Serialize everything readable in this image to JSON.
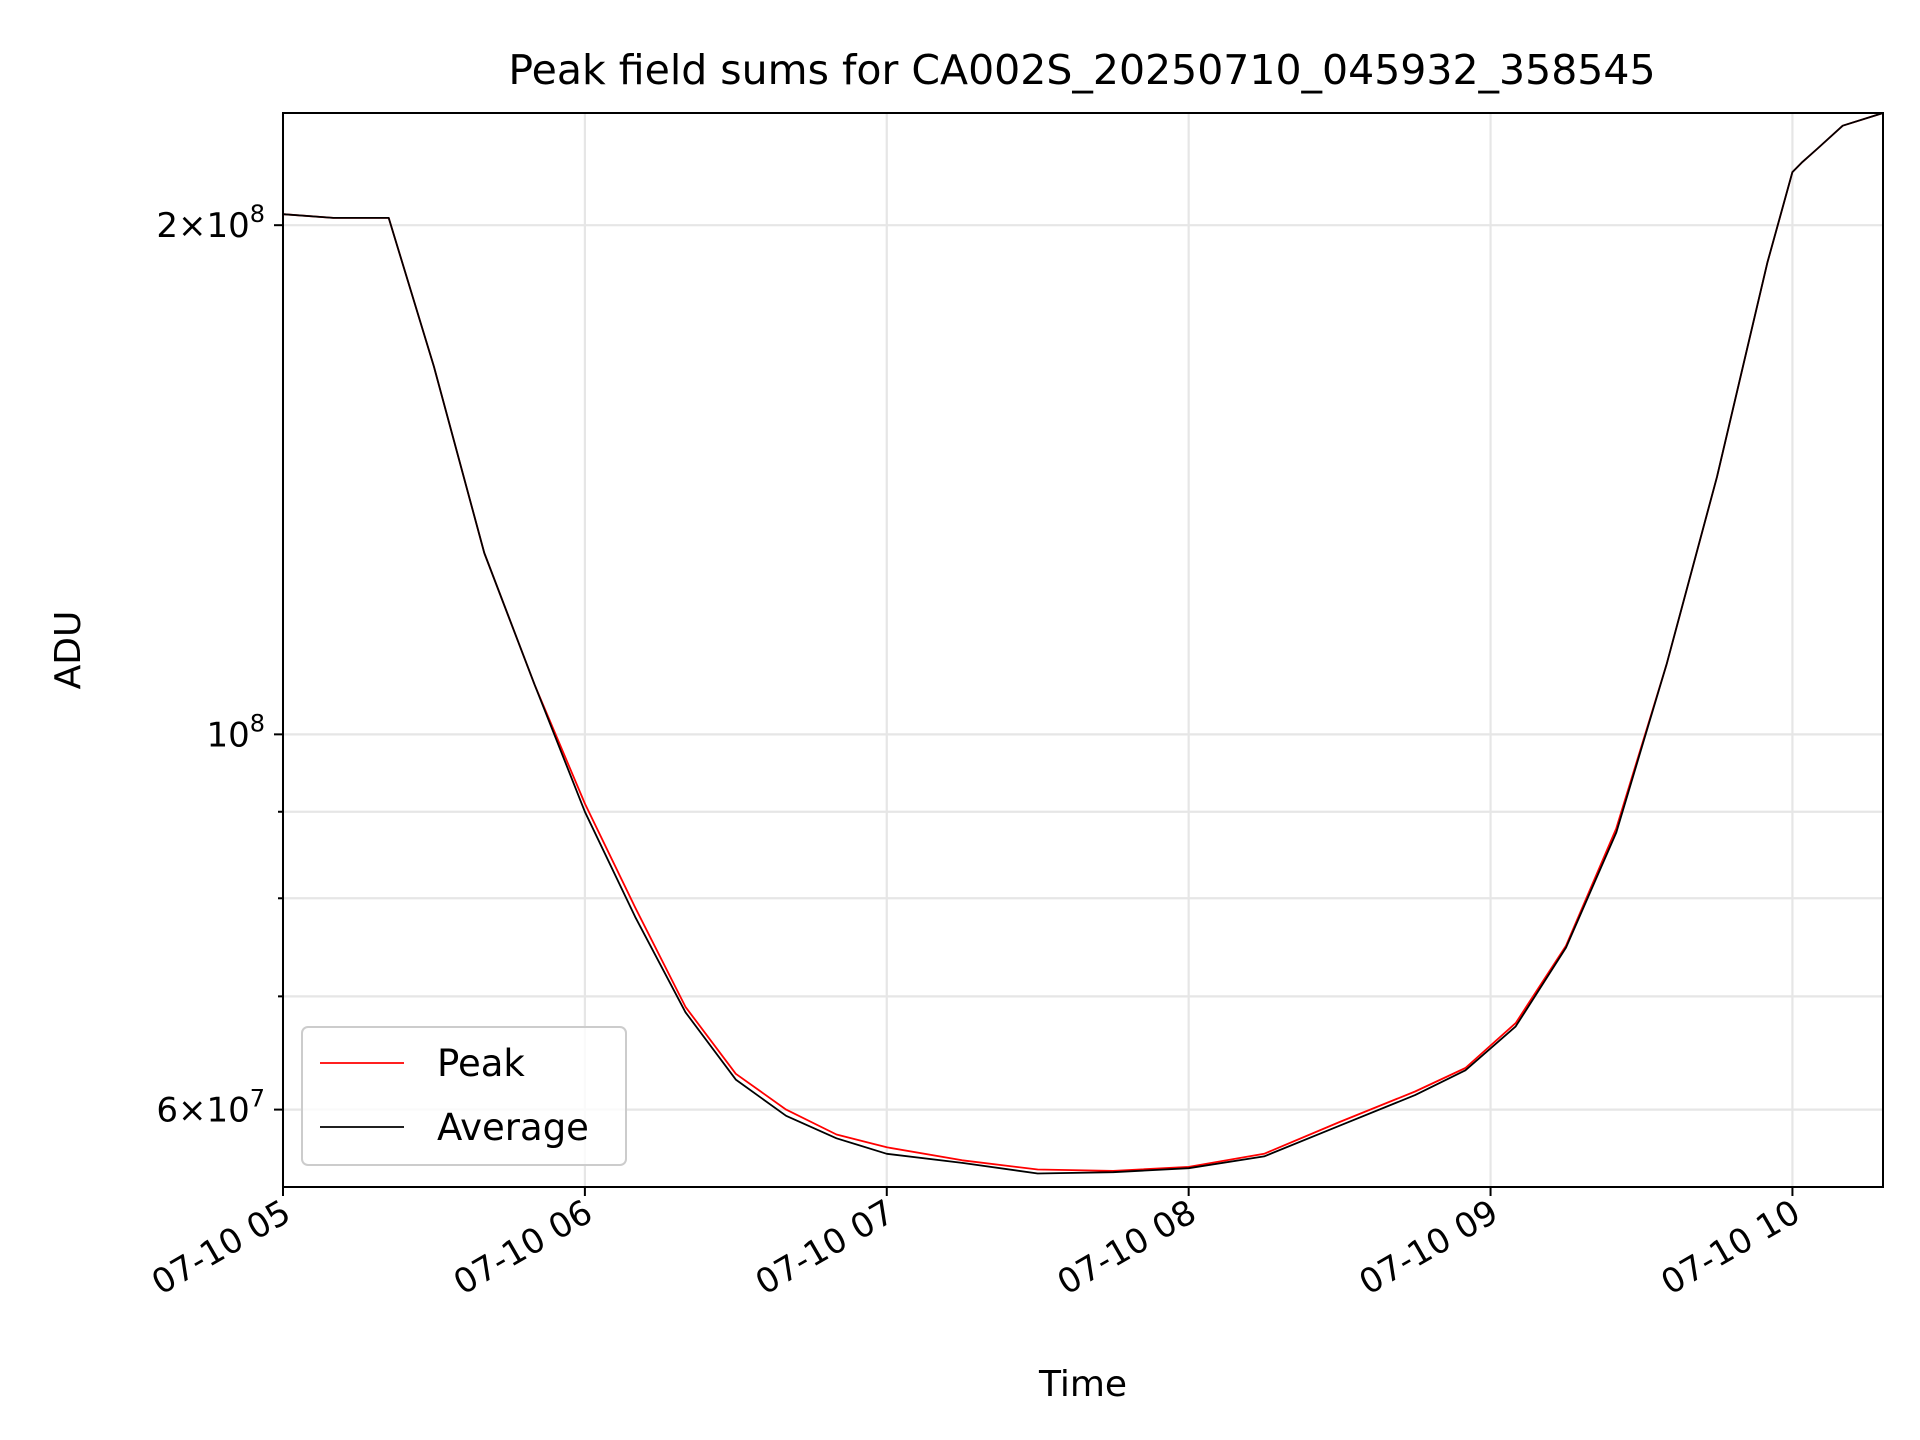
{
  "chart_data": {
    "type": "line",
    "title": "Peak field sums for CA002S_20250710_045932_358545",
    "xlabel": "Time",
    "ylabel": "ADU",
    "y_scale": "log",
    "grid": true,
    "legend_position": "lower-left",
    "xlim": [
      "07-10 05:00",
      "07-10 10:18"
    ],
    "ylim": [
      54000000,
      233000000
    ],
    "x_ticks": [
      "07-10 05:00",
      "07-10 06:00",
      "07-10 07:00",
      "07-10 08:00",
      "07-10 09:00",
      "07-10 10:00"
    ],
    "x_tick_labels": [
      "07-10 05",
      "07-10 06",
      "07-10 07",
      "07-10 08",
      "07-10 09",
      "07-10 10"
    ],
    "y_ticks": [
      60000000,
      100000000,
      200000000
    ],
    "y_minor_ticks": [
      70000000,
      80000000,
      90000000
    ],
    "y_tick_labels": [
      {
        "mantissa": "6",
        "exponent": "7"
      },
      {
        "mantissa": "",
        "exponent": "8"
      },
      {
        "mantissa": "2",
        "exponent": "8"
      }
    ],
    "x": [
      "07-10 05:00",
      "07-10 05:10",
      "07-10 05:21",
      "07-10 05:30",
      "07-10 05:40",
      "07-10 05:50",
      "07-10 06:00",
      "07-10 06:10",
      "07-10 06:20",
      "07-10 06:30",
      "07-10 06:40",
      "07-10 06:50",
      "07-10 07:00",
      "07-10 07:15",
      "07-10 07:30",
      "07-10 07:45",
      "07-10 08:00",
      "07-10 08:15",
      "07-10 08:30",
      "07-10 08:45",
      "07-10 08:55",
      "07-10 09:05",
      "07-10 09:15",
      "07-10 09:25",
      "07-10 09:35",
      "07-10 09:45",
      "07-10 09:55",
      "07-10 10:00",
      "07-10 10:02",
      "07-10 10:05",
      "07-10 10:10",
      "07-10 10:18"
    ],
    "series": [
      {
        "name": "Peak",
        "color": "#ff0000",
        "values": [
          203000000,
          202000000,
          202000000,
          165000000,
          128000000,
          107000000,
          91000000,
          79000000,
          69000000,
          63000000,
          60000000,
          58000000,
          57000000,
          56000000,
          55300000,
          55200000,
          55500000,
          56500000,
          59000000,
          61500000,
          63500000,
          67500000,
          75000000,
          88000000,
          110000000,
          142000000,
          190000000,
          215000000,
          218000000,
          222000000,
          229000000,
          233000000
        ]
      },
      {
        "name": "Average",
        "color": "#000000",
        "values": [
          203000000,
          202000000,
          202000000,
          165000000,
          128000000,
          107000000,
          90000000,
          78000000,
          68500000,
          62500000,
          59500000,
          57700000,
          56500000,
          55800000,
          55000000,
          55100000,
          55400000,
          56300000,
          58700000,
          61200000,
          63300000,
          67200000,
          74800000,
          87500000,
          110000000,
          142000000,
          190000000,
          215000000,
          218000000,
          222000000,
          229000000,
          233000000
        ]
      }
    ]
  }
}
